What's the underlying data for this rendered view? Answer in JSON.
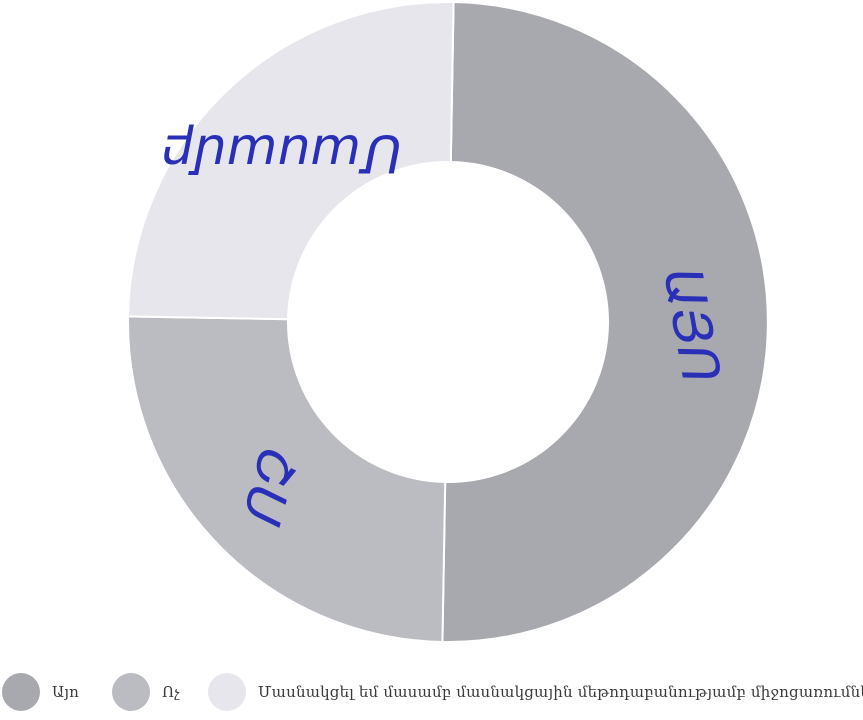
{
  "chart_data": {
    "type": "pie",
    "donut": true,
    "categories": [
      "Այո",
      "Ոչ",
      "Մասնակցել եմ մասամբ մասնակցային մեթոդաբանությամբ միջոցառումների"
    ],
    "values": [
      50,
      25,
      25
    ],
    "colors": [
      "#a8a9ae",
      "#bbbcc1",
      "#e6e6ec"
    ],
    "legend_position": "bottom-left",
    "handwritten_annotations": [
      "ԱՅՈ",
      "ՈՉ",
      "Մասամբ"
    ],
    "annotation_color": "#2a2fb8"
  }
}
